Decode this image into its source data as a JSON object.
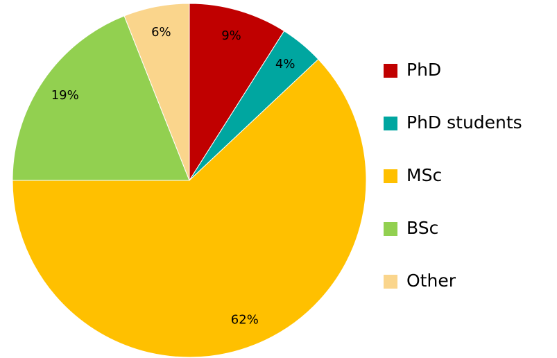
{
  "chart_data": {
    "type": "pie",
    "categories": [
      "PhD",
      "PhD students",
      "MSc",
      "BSc",
      "Other"
    ],
    "values": [
      9,
      4,
      62,
      19,
      6
    ],
    "colors": [
      "#c00000",
      "#00a6a0",
      "#ffc000",
      "#92d050",
      "#fad58c"
    ],
    "legend": "right"
  }
}
